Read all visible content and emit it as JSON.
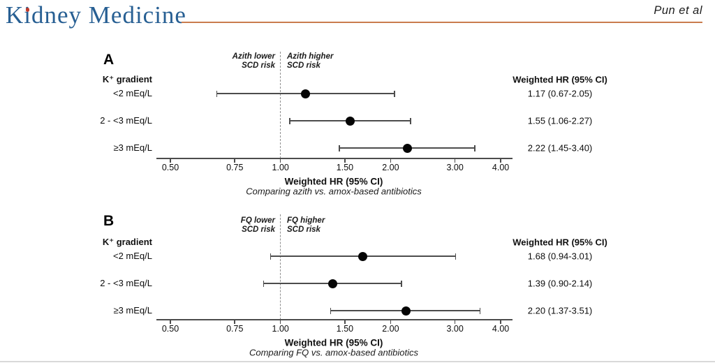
{
  "header": {
    "journal": "Kidney Medicine",
    "authors": "Pun et al",
    "logo_color": "#275f93",
    "logo_dot_color": "#c0392b",
    "rule_color": "#c97c4e"
  },
  "chart_data": [
    {
      "type": "forest",
      "panel_label": "A",
      "group_header": "K⁺ gradient",
      "left_annotation": [
        "Azith lower",
        "SCD risk"
      ],
      "right_annotation": [
        "Azith higher",
        "SCD risk"
      ],
      "column_header": "Weighted HR (95% CI)",
      "rows": [
        {
          "label": "<2 mEq/L",
          "hr": 1.17,
          "lo": 0.67,
          "hi": 2.05,
          "value_text": "1.17 (0.67-2.05)"
        },
        {
          "label": "2 - <3 mEq/L",
          "hr": 1.55,
          "lo": 1.06,
          "hi": 2.27,
          "value_text": "1.55 (1.06-2.27)"
        },
        {
          "label": "≥3 mEq/L",
          "hr": 2.22,
          "lo": 1.45,
          "hi": 3.4,
          "value_text": "2.22 (1.45-3.40)"
        }
      ],
      "x_scale": "log",
      "xlim": [
        0.46,
        4.3
      ],
      "ref_line": 1.0,
      "x_ticks": [
        0.5,
        0.75,
        1.0,
        1.5,
        2.0,
        3.0,
        4.0
      ],
      "x_tick_labels": [
        "0.50",
        "0.75",
        "1.00",
        "1.50",
        "2.00",
        "3.00",
        "4.00"
      ],
      "xlabel": "Weighted HR (95% CI)",
      "caption": "Comparing azith vs. amox-based antibiotics",
      "grid": false,
      "legend": false
    },
    {
      "type": "forest",
      "panel_label": "B",
      "group_header": "K⁺ gradient",
      "left_annotation": [
        "FQ lower",
        "SCD risk"
      ],
      "right_annotation": [
        "FQ higher",
        "SCD risk"
      ],
      "column_header": "Weighted HR (95% CI)",
      "rows": [
        {
          "label": "<2 mEq/L",
          "hr": 1.68,
          "lo": 0.94,
          "hi": 3.01,
          "value_text": "1.68 (0.94-3.01)"
        },
        {
          "label": "2 - <3 mEq/L",
          "hr": 1.39,
          "lo": 0.9,
          "hi": 2.14,
          "value_text": "1.39 (0.90-2.14)"
        },
        {
          "label": "≥3 mEq/L",
          "hr": 2.2,
          "lo": 1.37,
          "hi": 3.51,
          "value_text": "2.20 (1.37-3.51)"
        }
      ],
      "x_scale": "log",
      "xlim": [
        0.46,
        4.3
      ],
      "ref_line": 1.0,
      "x_ticks": [
        0.5,
        0.75,
        1.0,
        1.5,
        2.0,
        3.0,
        4.0
      ],
      "x_tick_labels": [
        "0.50",
        "0.75",
        "1.00",
        "1.50",
        "2.00",
        "3.00",
        "4.00"
      ],
      "xlabel": "Weighted HR (95% CI)",
      "caption": "Comparing FQ vs. amox-based antibiotics",
      "grid": false,
      "legend": false
    }
  ]
}
